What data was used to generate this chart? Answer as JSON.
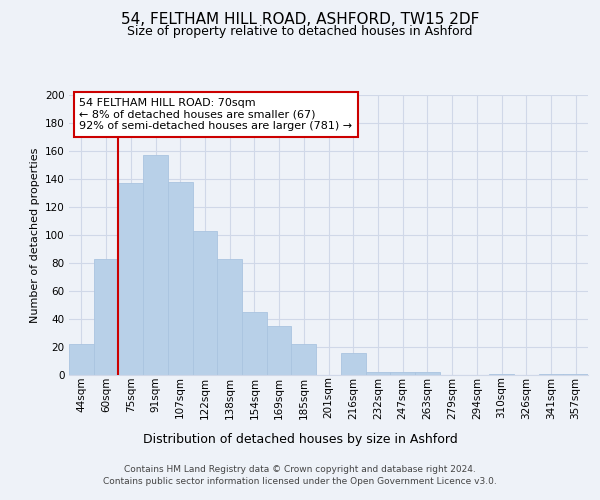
{
  "title_line1": "54, FELTHAM HILL ROAD, ASHFORD, TW15 2DF",
  "title_line2": "Size of property relative to detached houses in Ashford",
  "xlabel": "Distribution of detached houses by size in Ashford",
  "ylabel": "Number of detached properties",
  "bar_labels": [
    "44sqm",
    "60sqm",
    "75sqm",
    "91sqm",
    "107sqm",
    "122sqm",
    "138sqm",
    "154sqm",
    "169sqm",
    "185sqm",
    "201sqm",
    "216sqm",
    "232sqm",
    "247sqm",
    "263sqm",
    "279sqm",
    "294sqm",
    "310sqm",
    "326sqm",
    "341sqm",
    "357sqm"
  ],
  "bar_values": [
    22,
    83,
    137,
    157,
    138,
    103,
    83,
    45,
    35,
    22,
    0,
    16,
    2,
    2,
    2,
    0,
    0,
    1,
    0,
    1,
    1
  ],
  "bar_color": "#b8d0e8",
  "bar_edge_color": "#aac4e0",
  "vline_color": "#cc0000",
  "annotation_lines": [
    "54 FELTHAM HILL ROAD: 70sqm",
    "← 8% of detached houses are smaller (67)",
    "92% of semi-detached houses are larger (781) →"
  ],
  "annotation_box_color": "white",
  "annotation_box_edge_color": "#cc0000",
  "ylim": [
    0,
    200
  ],
  "yticks": [
    0,
    20,
    40,
    60,
    80,
    100,
    120,
    140,
    160,
    180,
    200
  ],
  "footer_line1": "Contains HM Land Registry data © Crown copyright and database right 2024.",
  "footer_line2": "Contains public sector information licensed under the Open Government Licence v3.0.",
  "background_color": "#eef2f8",
  "plot_bg_color": "#eef2f8",
  "grid_color": "#d0d8e8",
  "title_fontsize": 11,
  "subtitle_fontsize": 9,
  "ylabel_fontsize": 8,
  "xlabel_fontsize": 9,
  "tick_fontsize": 7.5,
  "footer_fontsize": 6.5
}
